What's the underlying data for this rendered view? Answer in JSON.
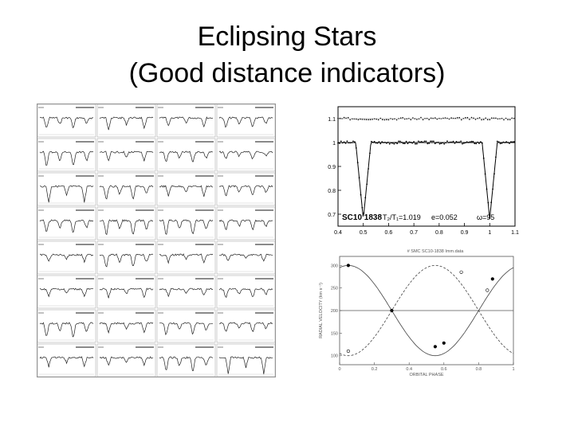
{
  "slide": {
    "title_line1": "Eclipsing Stars",
    "title_line2": "(Good distance indicators)"
  },
  "light_curve_panel": {
    "star_label": "SC10 1838",
    "temp_ratio_label": "T₂/T₁=1.019",
    "ecc_label": "e=0.052",
    "omega_label": "ω=95",
    "x_ticks": [
      "0.4",
      "0.5",
      "0.6",
      "0.7",
      "0.8",
      "0.9",
      "1",
      "1.1"
    ],
    "y_ticks": [
      "1.1",
      "1",
      "0.9",
      "0.8",
      "0.7"
    ]
  },
  "rv_panel": {
    "title": "# SMC SC10-1838 Imm.data",
    "ylabel": "RADIAL VELOCITY (km s⁻¹)",
    "xlabel": "ORBITAL PHASE",
    "x_ticks": [
      "0",
      "0.2",
      "0.4",
      "0.6",
      "0.8",
      "1"
    ],
    "y_ticks": [
      "300",
      "250",
      "200",
      "150",
      "100"
    ]
  },
  "chart_data": [
    {
      "type": "line",
      "panel": "eclipse-light-curve-grid",
      "rows": 8,
      "cols": 4,
      "xlim": [
        0,
        1
      ],
      "ylim": [
        0.5,
        1.1
      ]
    },
    {
      "type": "scatter",
      "panel": "sc10-1838-light-curve",
      "xlim": [
        0.4,
        1.1
      ],
      "ylim": [
        0.65,
        1.15
      ],
      "baseline": 1.0,
      "offset_baseline": 1.1,
      "eclipses": [
        {
          "phase": 0.5,
          "depth": 0.68
        },
        {
          "phase": 1.0,
          "depth": 0.68
        }
      ]
    },
    {
      "type": "line",
      "panel": "radial-velocity-curve",
      "xlim": [
        0,
        1
      ],
      "ylim": [
        80,
        320
      ],
      "systemic_velocity": 200,
      "series": [
        {
          "amplitude": 100,
          "phase_max": 0.05,
          "style": "solid",
          "points": [
            [
              0.05,
              300
            ],
            [
              0.3,
              200
            ],
            [
              0.55,
              120
            ],
            [
              0.6,
              128
            ],
            [
              0.88,
              270
            ]
          ]
        },
        {
          "amplitude": 100,
          "phase_max": 0.55,
          "style": "dashed",
          "points": [
            [
              0.05,
              110
            ],
            [
              0.7,
              285
            ],
            [
              0.85,
              245
            ]
          ]
        }
      ]
    }
  ]
}
